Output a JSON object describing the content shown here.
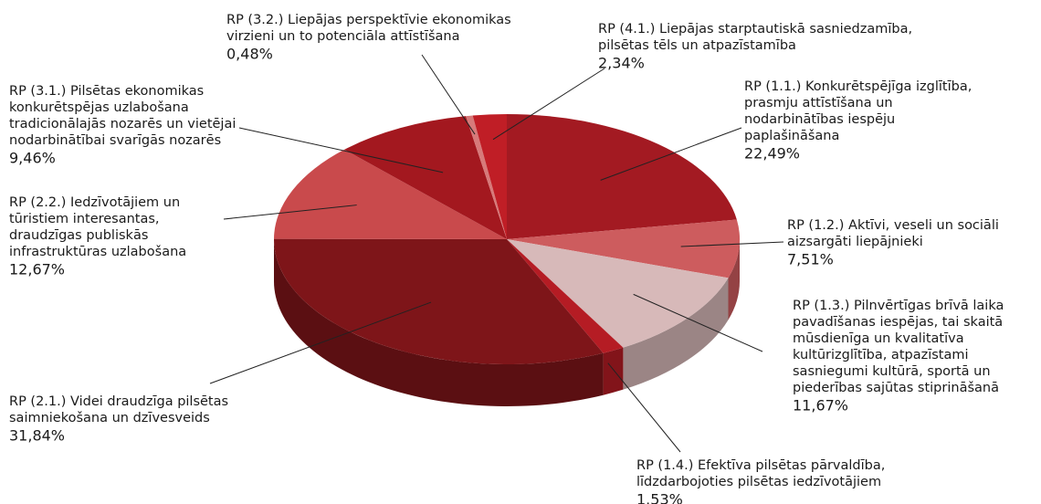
{
  "chart_data": {
    "type": "pie3d",
    "categories": [
      [
        "RP (1.1.) Konkurētspējīga izglītība,",
        "prasmju attīstīšana un",
        "nodarbinātības iespēju",
        "paplašināšana"
      ],
      [
        "RP (1.2.) Aktīvi, veseli un sociāli",
        "aizsargāti liepājnieki"
      ],
      [
        "RP (1.3.) Pilnvērtīgas brīvā laika",
        "pavadīšanas iespējas, tai skaitā",
        "mūsdienīga un kvalitatīva",
        "kultūrizglītība, atpazīstami",
        "sasniegumi kultūrā, sportā un",
        "piederības sajūtas stiprināšanā"
      ],
      [
        "RP (1.4.) Efektīva pilsētas pārvaldība,",
        "līdzdarbojoties pilsētas iedzīvotājiem"
      ],
      [
        "RP (2.1.) Videi draudzīga pilsētas",
        "saimniekošana un dzīvesveids"
      ],
      [
        "RP (2.2.) Iedzīvotājiem un",
        "tūristiem interesantas,",
        "draudzīgas publiskās",
        "infrastruktūras uzlabošana"
      ],
      [
        "RP (3.1.) Pilsētas ekonomikas",
        "konkurētspējas uzlabošana",
        "tradicionālajās nozarēs un vietējai",
        "nodarbinātībai svarīgās nozarēs"
      ],
      [
        "RP (3.2.) Liepājas perspektīvie ekonomikas",
        "virzieni un to potenciāla attīstīšana"
      ],
      [
        "RP (4.1.) Liepājas starptautiskā sasniedzamība,",
        "pilsētas tēls un atpazīstamība"
      ]
    ],
    "values": [
      22.49,
      7.51,
      11.67,
      1.53,
      31.84,
      12.67,
      9.46,
      0.48,
      2.34
    ],
    "value_labels": [
      "22,49%",
      "7,51%",
      "11,67%",
      "1.53%",
      "31,84%",
      "12,67%",
      "9,46%",
      "0,48%",
      "2,34%"
    ],
    "colors": [
      "#a31a22",
      "#cd5c5e",
      "#d7b9b9",
      "#b51c24",
      "#7e1519",
      "#c94a4c",
      "#a3181f",
      "#d77a7a",
      "#c01e26"
    ]
  }
}
